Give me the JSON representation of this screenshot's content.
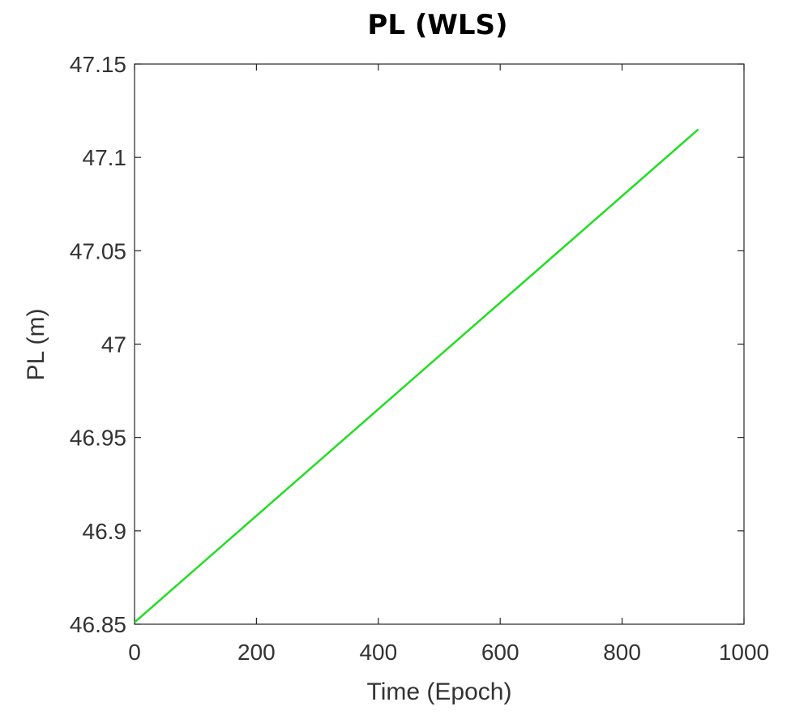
{
  "chart_data": {
    "type": "line",
    "title": "PL (WLS)",
    "xlabel": "Time (Epoch)",
    "ylabel": "PL (m)",
    "xlim": [
      0,
      1000
    ],
    "ylim": [
      46.85,
      47.15
    ],
    "xticks": [
      0,
      200,
      400,
      600,
      800,
      1000
    ],
    "xtick_labels": [
      "0",
      "200",
      "400",
      "600",
      "800",
      "1000"
    ],
    "yticks": [
      46.85,
      46.9,
      46.95,
      47,
      47.05,
      47.1,
      47.15
    ],
    "ytick_labels": [
      "46.85",
      "46.9",
      "46.95",
      "47",
      "47.05",
      "47.1",
      "47.15"
    ],
    "grid": false,
    "series": [
      {
        "color": "#22dd22",
        "x": [
          0,
          925
        ],
        "y": [
          46.851,
          47.115
        ]
      }
    ]
  }
}
